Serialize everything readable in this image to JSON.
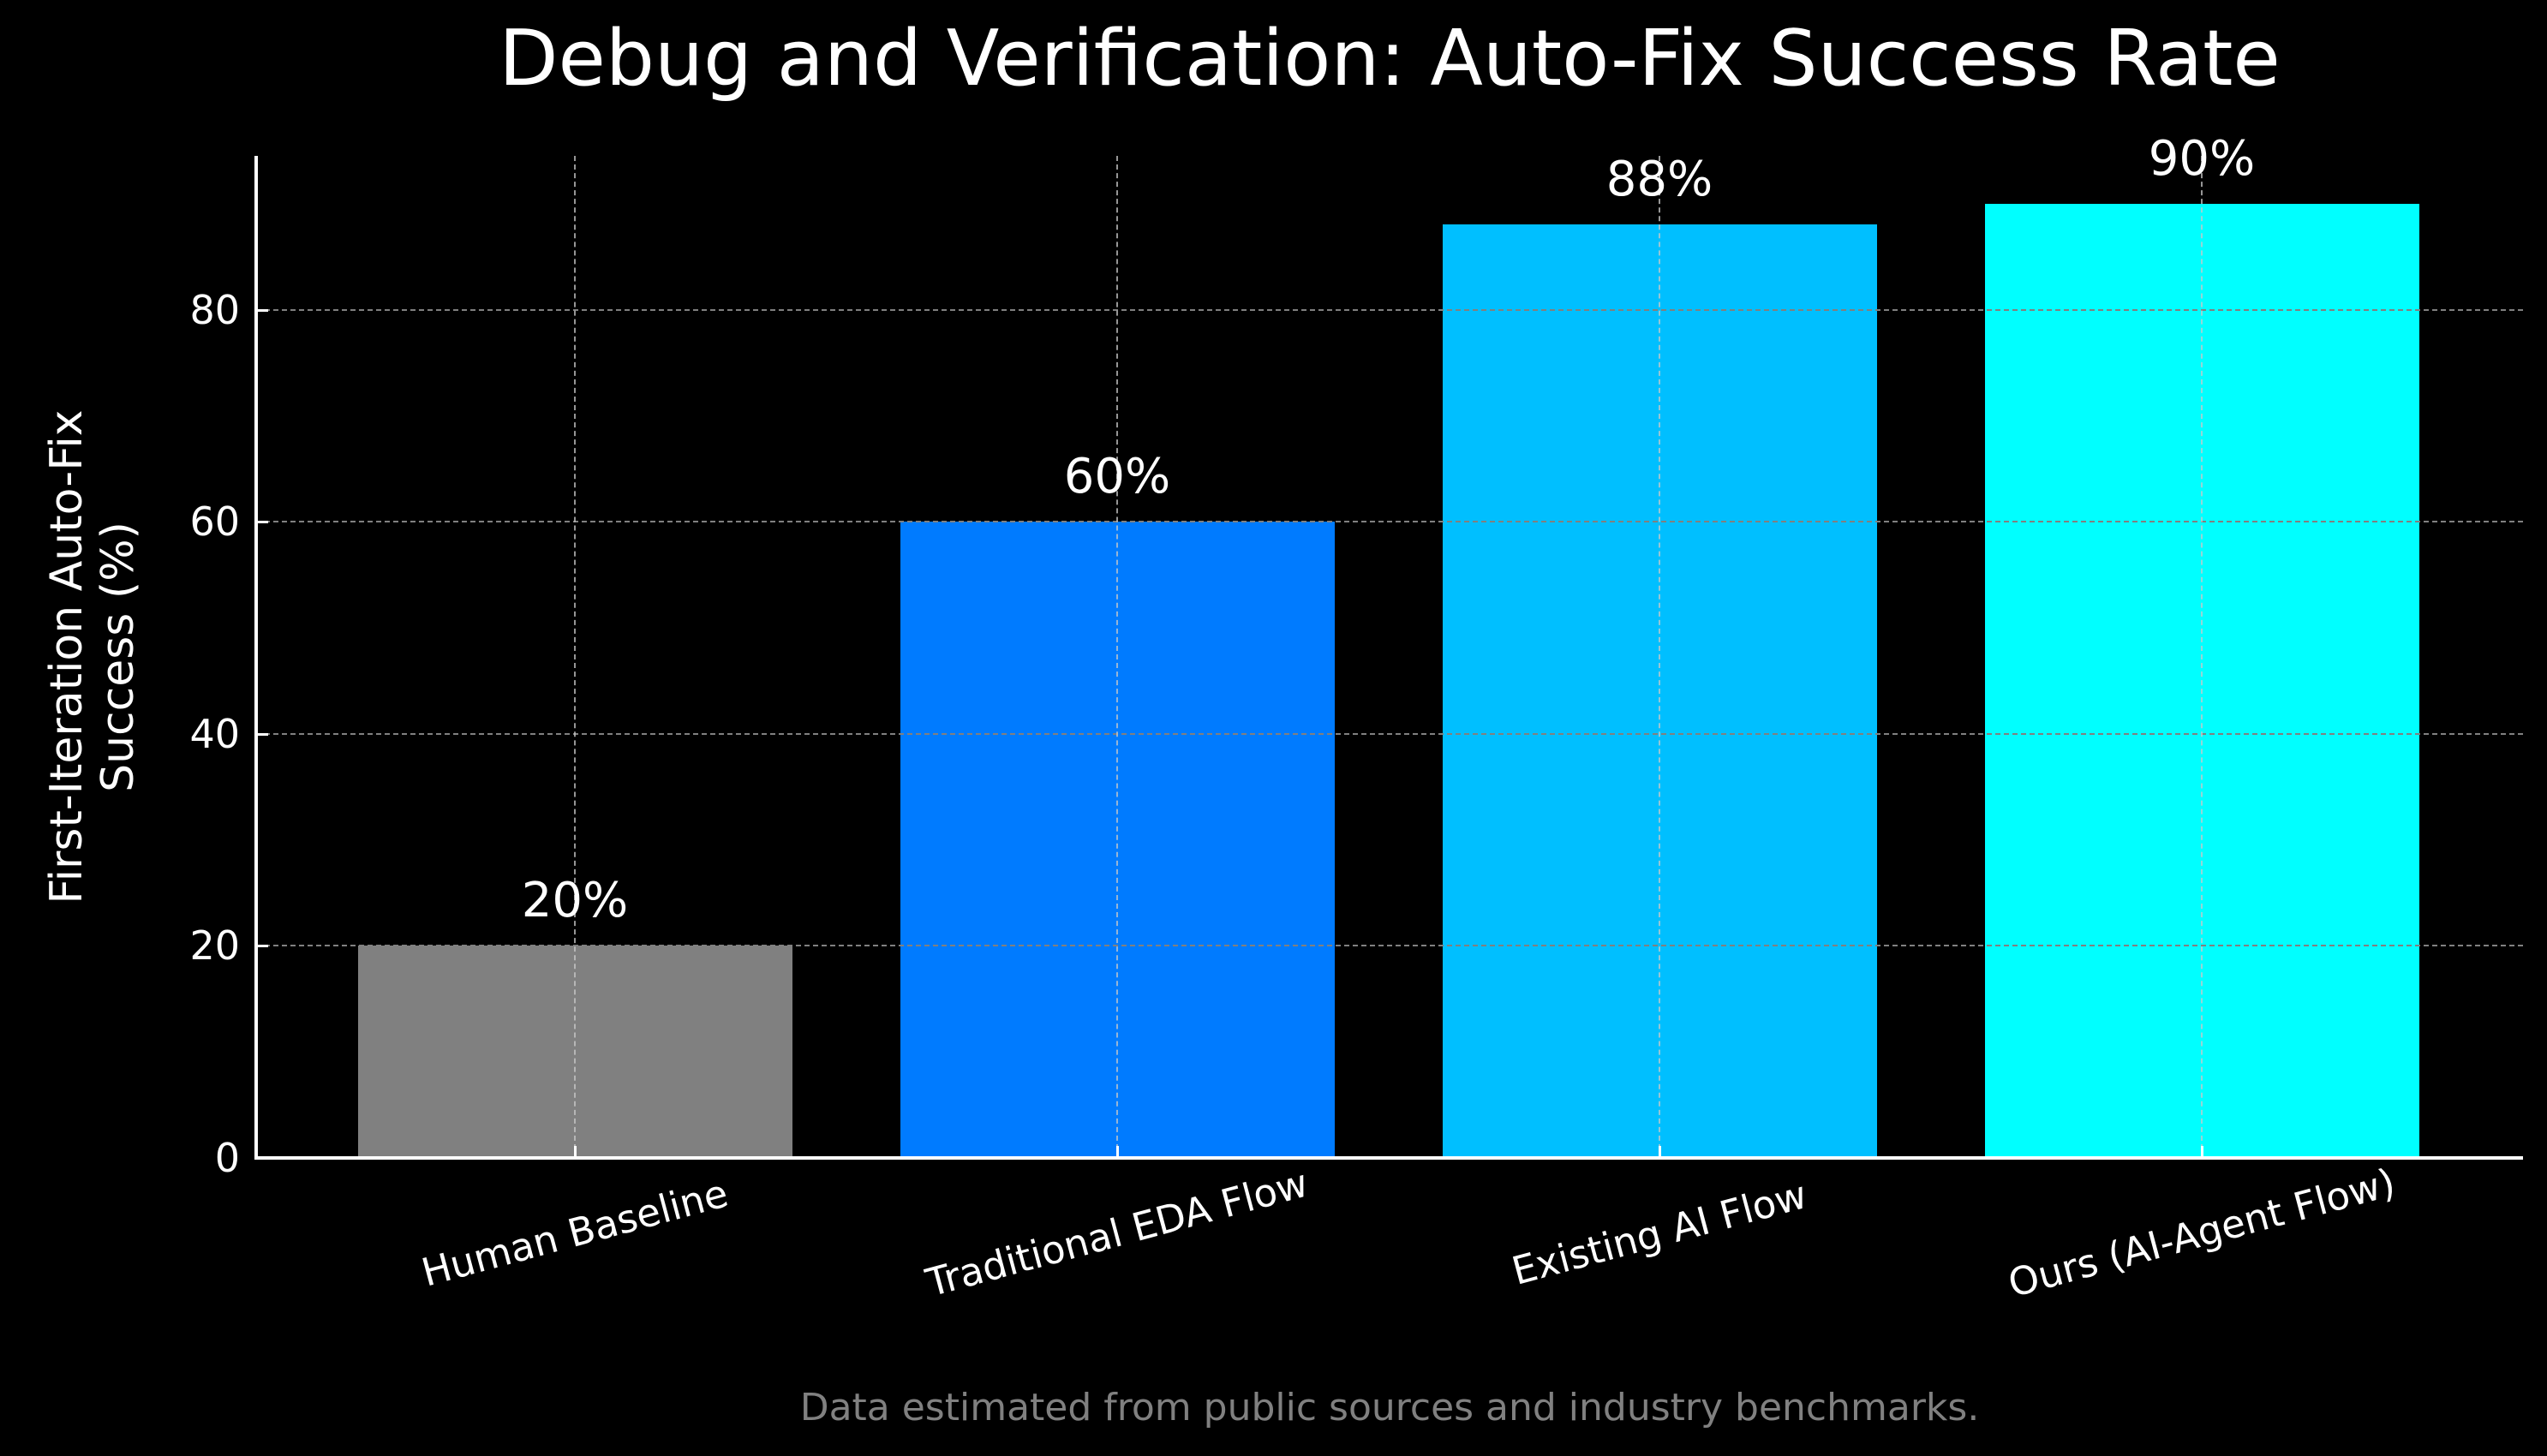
{
  "chart_data": {
    "type": "bar",
    "title": "Debug and Verification: Auto-Fix Success Rate",
    "xlabel": "",
    "ylabel": "First-Iteration Auto-Fix\nSuccess (%)",
    "ylabel_lines": [
      "First-Iteration Auto-Fix",
      "Success (%)"
    ],
    "categories": [
      "Human Baseline",
      "Traditional EDA Flow",
      "Existing AI Flow",
      "Ours (AI-Agent Flow)"
    ],
    "values": [
      20,
      60,
      88,
      90
    ],
    "value_labels": [
      "20%",
      "60%",
      "88%",
      "90%"
    ],
    "bar_colors": [
      "#808080",
      "#007BFF",
      "#00BFFF",
      "#00FFFF"
    ],
    "ylim": [
      0,
      94.5
    ],
    "yticks": [
      0,
      20,
      40,
      60,
      80
    ],
    "xtick_rotation": 15,
    "grid": true,
    "grid_style": "dashed",
    "legend": null,
    "background": "#000000",
    "footnote": "Data estimated from public sources and industry benchmarks."
  }
}
